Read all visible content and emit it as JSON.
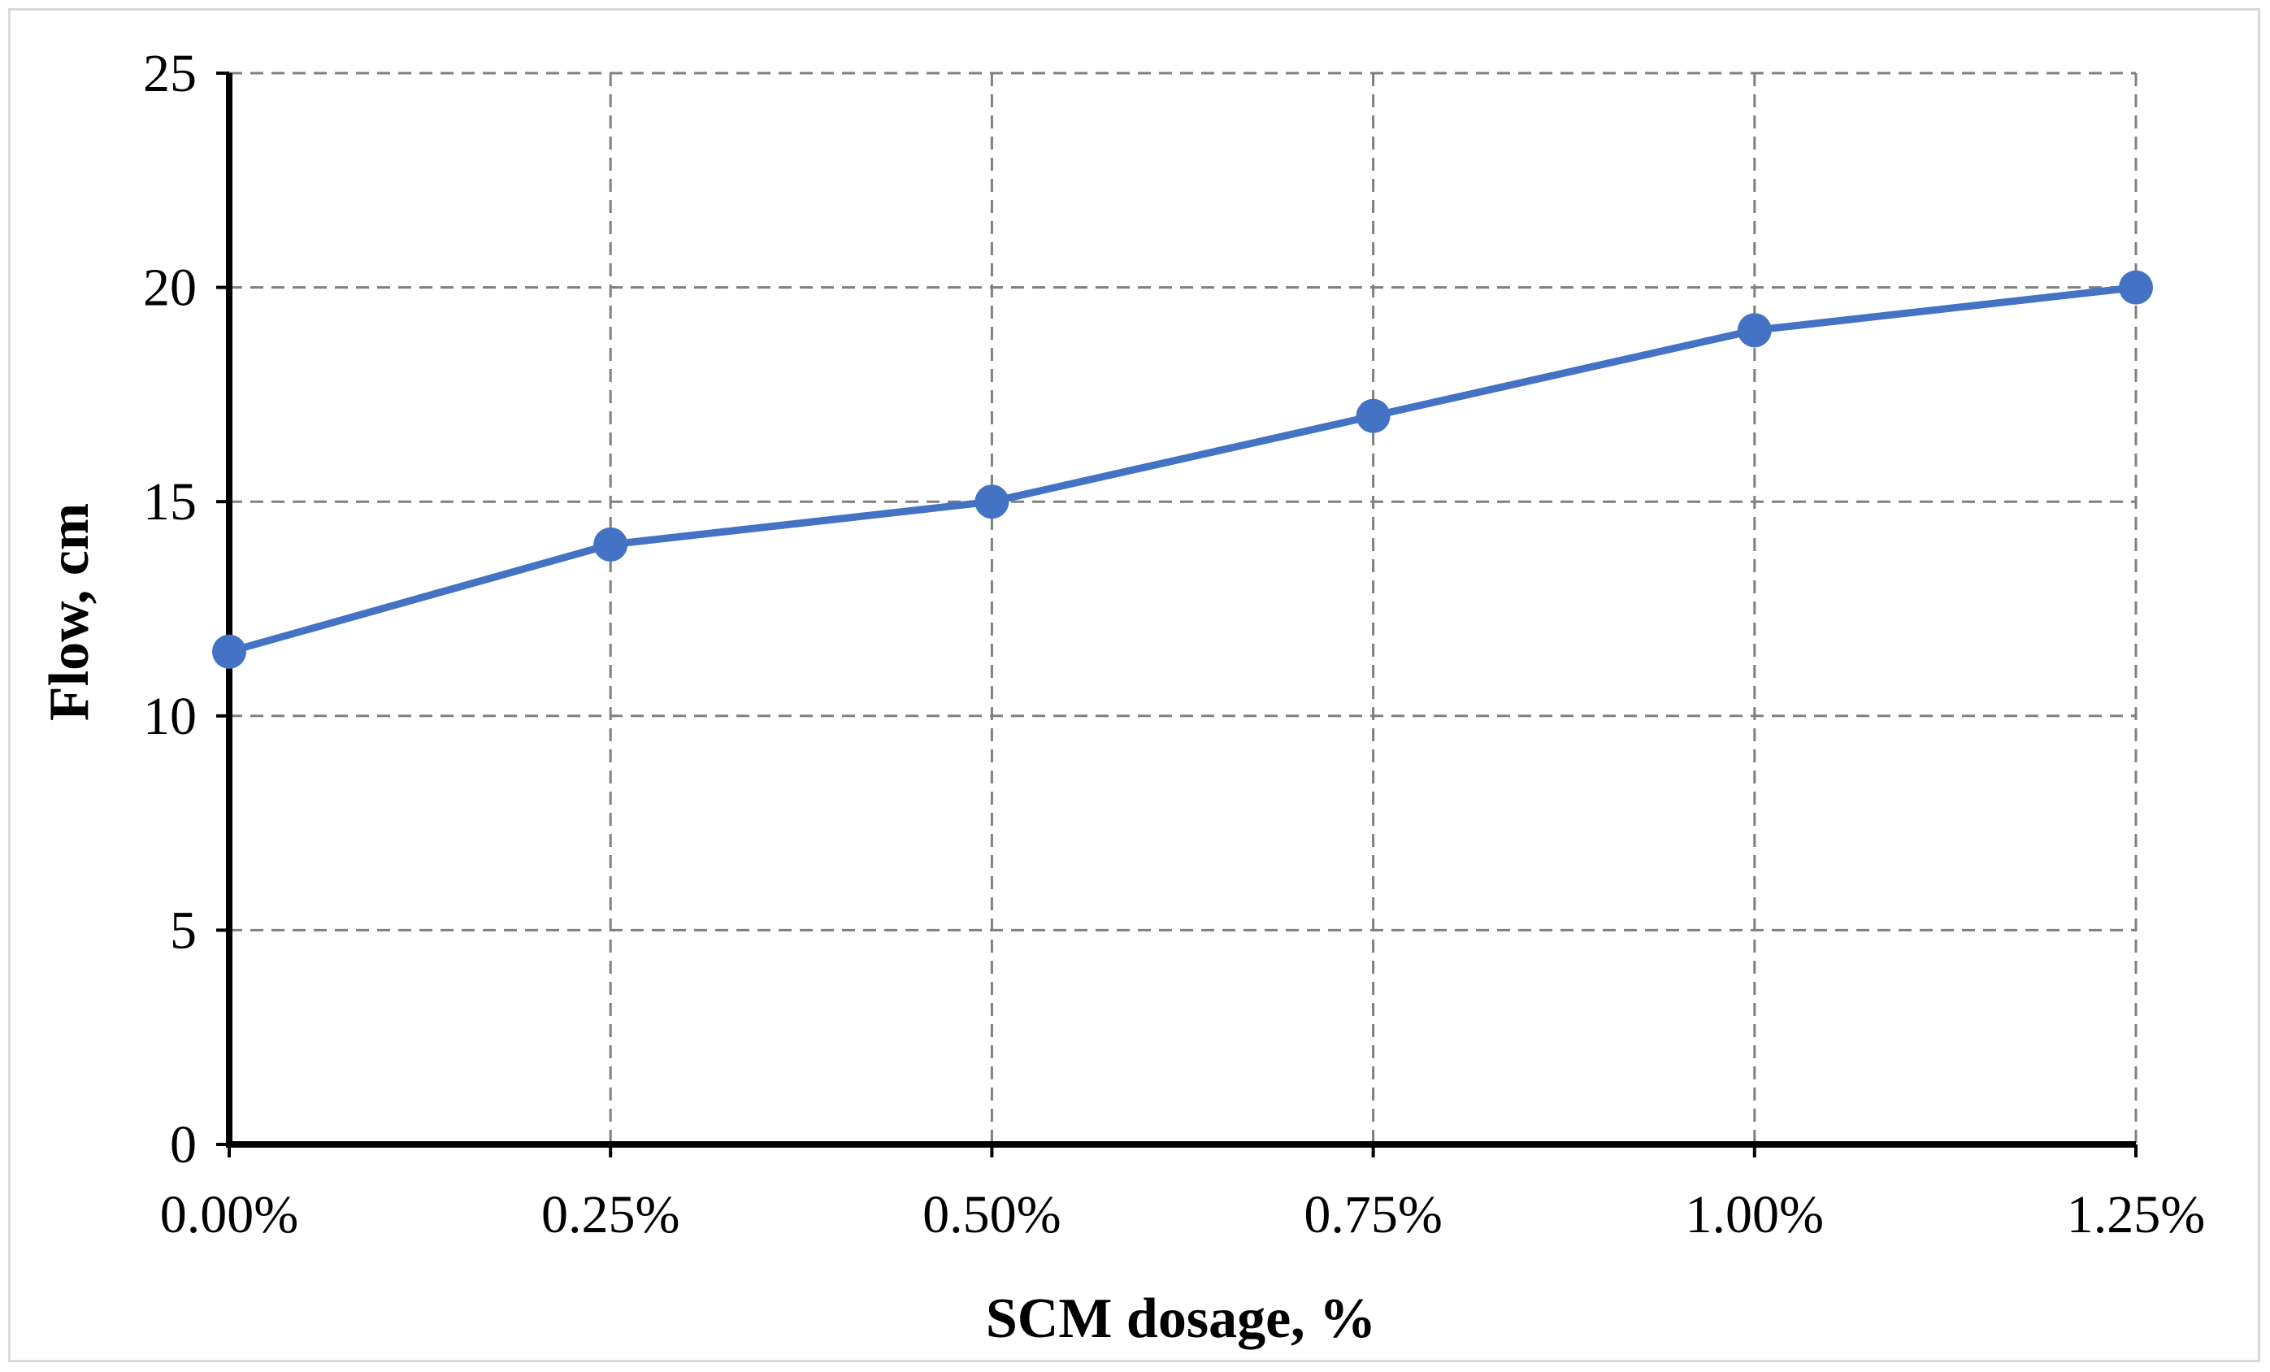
{
  "chart_data": {
    "type": "line",
    "title": "",
    "xlabel": "SCM dosage, %",
    "ylabel": "Flow, cm",
    "categories": [
      "0.00%",
      "0.25%",
      "0.50%",
      "0.75%",
      "1.00%",
      "1.25%"
    ],
    "x": [
      0.0,
      0.25,
      0.5,
      0.75,
      1.0,
      1.25
    ],
    "series": [
      {
        "values": [
          11.5,
          14,
          15,
          17,
          19,
          20
        ],
        "color": "#4472C4",
        "marker": "circle"
      }
    ],
    "xlim": [
      0.0,
      1.25
    ],
    "ylim": [
      0,
      25
    ],
    "yticks": [
      0,
      5,
      10,
      15,
      20,
      25
    ],
    "ytick_labels": [
      "0",
      "5",
      "10",
      "15",
      "20",
      "25"
    ],
    "grid": true,
    "grid_style": "dashed",
    "grid_color": "#808080",
    "axis_color": "#000000",
    "legend": "none"
  }
}
